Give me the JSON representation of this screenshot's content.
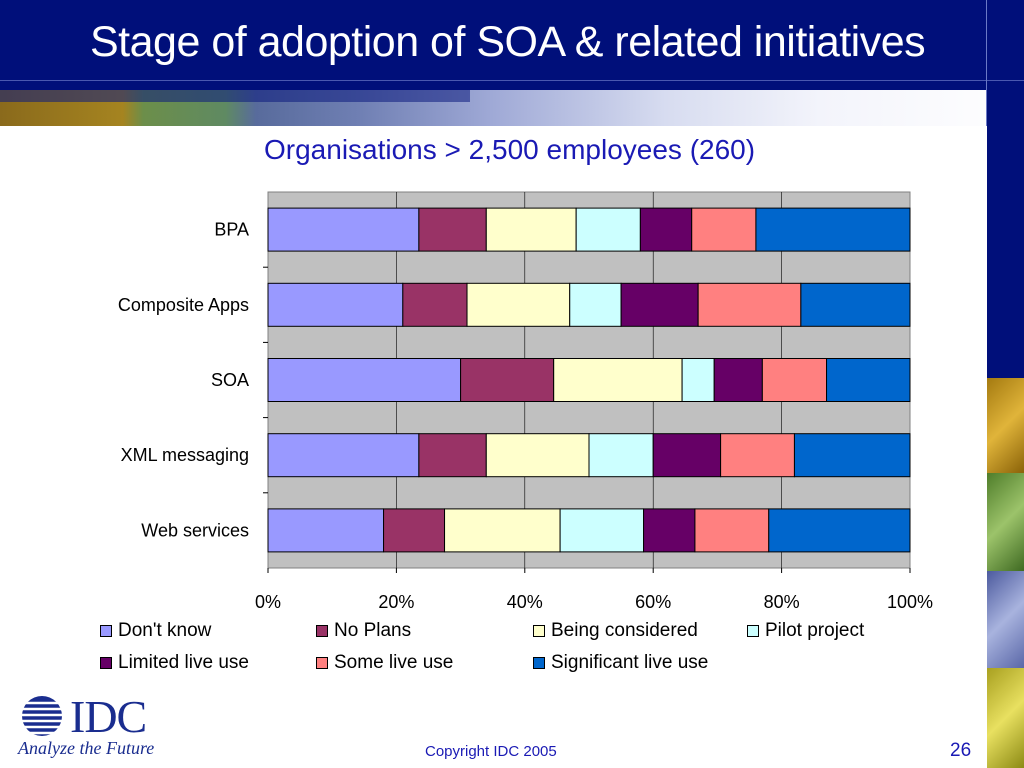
{
  "slide": {
    "title": "Stage of adoption of SOA & related initiatives",
    "copyright": "Copyright IDC 2005",
    "page_number": "26",
    "logo": {
      "brand": "IDC",
      "tagline": "Analyze the Future"
    }
  },
  "colors": {
    "header_bg": "#000f7a",
    "title_text": "#ffffff",
    "subtitle_text": "#1a1ab4",
    "plot_bg": "#c0c0c0",
    "series": [
      "#9999ff",
      "#993366",
      "#ffffcc",
      "#ccffff",
      "#660066",
      "#ff8080",
      "#0066cc"
    ]
  },
  "chart_data": {
    "type": "bar",
    "orientation": "horizontal",
    "stacked": "percent",
    "title": "Organisations > 2,500 employees (260)",
    "categories": [
      "BPA",
      "Composite Apps",
      "SOA",
      "XML messaging",
      "Web services"
    ],
    "xlim": [
      0,
      100
    ],
    "x_ticks": [
      "0%",
      "20%",
      "40%",
      "60%",
      "80%",
      "100%"
    ],
    "grid": true,
    "legend_position": "bottom",
    "series": [
      {
        "name": "Don't know",
        "values": [
          23.5,
          21,
          30,
          23.5,
          18
        ]
      },
      {
        "name": "No Plans",
        "values": [
          10.5,
          10,
          14.5,
          10.5,
          9.5
        ]
      },
      {
        "name": "Being considered",
        "values": [
          14,
          16,
          20,
          16,
          18
        ]
      },
      {
        "name": "Pilot project",
        "values": [
          10,
          8,
          5,
          10,
          13
        ]
      },
      {
        "name": "Limited live use",
        "values": [
          8,
          12,
          7.5,
          10.5,
          8
        ]
      },
      {
        "name": "Some live use",
        "values": [
          10,
          16,
          10,
          11.5,
          11.5
        ]
      },
      {
        "name": "Significant live use",
        "values": [
          24,
          17,
          13,
          18,
          22
        ]
      }
    ]
  }
}
